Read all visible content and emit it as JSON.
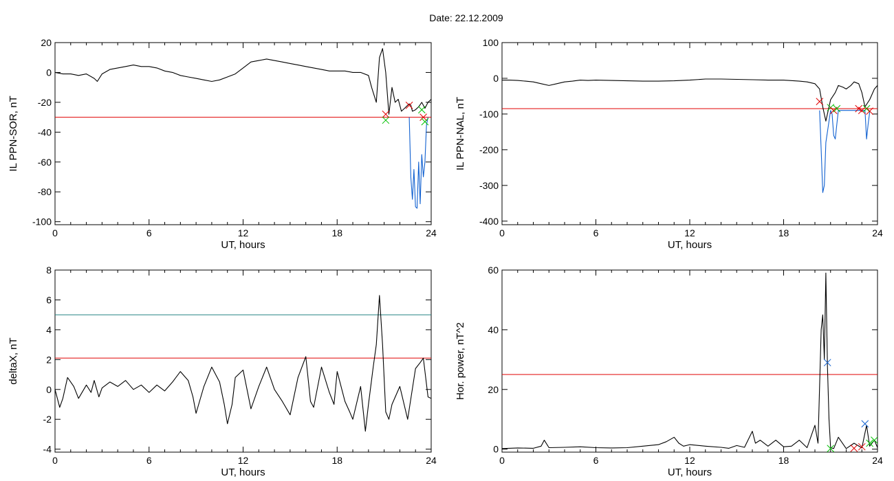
{
  "figure_title": "Date:  22.12.2009",
  "chart_data": [
    {
      "id": "ppn-sor",
      "type": "line",
      "ylabel": "IL PPN-SOR, nT",
      "xlabel": "UT, hours",
      "xlim": [
        0,
        24
      ],
      "ylim": [
        -102,
        20
      ],
      "xticks": [
        0,
        6,
        12,
        18,
        24
      ],
      "yticks": [
        20,
        0,
        -20,
        -40,
        -60,
        -80,
        -100
      ],
      "threshold": {
        "value": -30,
        "color": "#e00000"
      },
      "series": [
        {
          "color": "#000000",
          "x": [
            0,
            0.5,
            1,
            1.5,
            2,
            2.5,
            2.7,
            3,
            3.5,
            4,
            4.5,
            5,
            5.5,
            6,
            6.5,
            7,
            7.5,
            8,
            8.5,
            9,
            9.5,
            10,
            10.5,
            11,
            11.5,
            12,
            12.5,
            13,
            13.5,
            14,
            14.5,
            15,
            15.5,
            16,
            16.5,
            17,
            17.5,
            18,
            18.5,
            19,
            19.5,
            20,
            20.2,
            20.5,
            20.7,
            20.9,
            21.1,
            21.3,
            21.5,
            21.7,
            21.9,
            22.1,
            22.3,
            22.5,
            22.6,
            22.7,
            22.8,
            23,
            23.2,
            23.4,
            23.6,
            23.8,
            24
          ],
          "y": [
            0,
            -1,
            -1,
            -2,
            -1,
            -4,
            -6,
            -1,
            2,
            3,
            4,
            5,
            4,
            4,
            3,
            1,
            0,
            -2,
            -3,
            -4,
            -5,
            -6,
            -5,
            -3,
            -1,
            3,
            7,
            8,
            9,
            8,
            7,
            6,
            5,
            4,
            3,
            2,
            1,
            1,
            1,
            0,
            0,
            -2,
            -10,
            -20,
            10,
            16,
            0,
            -28,
            -10,
            -20,
            -18,
            -26,
            -24,
            -22,
            -21,
            -22,
            -26,
            -25,
            -23,
            -20,
            -24,
            -20,
            -18
          ]
        },
        {
          "color": "#1060d0",
          "x": [
            22.6,
            22.7,
            22.8,
            22.9,
            23.0,
            23.1,
            23.2,
            23.3,
            23.4,
            23.5,
            23.6,
            23.7,
            23.8
          ],
          "y": [
            -30,
            -70,
            -85,
            -65,
            -90,
            -91,
            -60,
            -88,
            -55,
            -70,
            -60,
            -35,
            -30
          ]
        }
      ],
      "markers": [
        {
          "x": 21.1,
          "y": -28,
          "color": "#e00000"
        },
        {
          "x": 21.1,
          "y": -32,
          "color": "#00c000"
        },
        {
          "x": 22.6,
          "y": -22,
          "color": "#e00000"
        },
        {
          "x": 23.4,
          "y": -25,
          "color": "#00c000"
        },
        {
          "x": 23.5,
          "y": -30,
          "color": "#e00000"
        },
        {
          "x": 23.6,
          "y": -33,
          "color": "#00c000"
        }
      ]
    },
    {
      "id": "ppn-nal",
      "type": "line",
      "ylabel": "IL PPN-NAL, nT",
      "xlabel": "UT, hours",
      "xlim": [
        0,
        24
      ],
      "ylim": [
        -410,
        100
      ],
      "xticks": [
        0,
        6,
        12,
        18,
        24
      ],
      "yticks": [
        100,
        0,
        -100,
        -200,
        -300,
        -400
      ],
      "threshold": {
        "value": -85,
        "color": "#e00000"
      },
      "series": [
        {
          "color": "#000000",
          "x": [
            0,
            0.5,
            1,
            1.5,
            2,
            2.5,
            3,
            3.5,
            4,
            4.5,
            5,
            5.5,
            6,
            7,
            8,
            9,
            10,
            11,
            12,
            13,
            14,
            15,
            16,
            17,
            18,
            19,
            19.5,
            20,
            20.3,
            20.5,
            20.7,
            21,
            21.3,
            21.5,
            21.8,
            22,
            22.3,
            22.5,
            22.8,
            23,
            23.2,
            23.5,
            23.8,
            24
          ],
          "y": [
            -5,
            -5,
            -6,
            -8,
            -10,
            -15,
            -20,
            -15,
            -10,
            -8,
            -5,
            -6,
            -5,
            -6,
            -7,
            -8,
            -8,
            -7,
            -5,
            -2,
            -2,
            -3,
            -4,
            -5,
            -5,
            -8,
            -10,
            -15,
            -30,
            -80,
            -120,
            -60,
            -40,
            -20,
            -25,
            -30,
            -20,
            -10,
            -15,
            -40,
            -80,
            -60,
            -30,
            -20
          ]
        },
        {
          "color": "#1060d0",
          "x": [
            20.3,
            20.4,
            20.5,
            20.6,
            20.7,
            20.8,
            20.9,
            21.0,
            21.1,
            21.2,
            21.3,
            21.4,
            21.5,
            23.2,
            23.3,
            23.4,
            23.5
          ],
          "y": [
            -90,
            -200,
            -320,
            -300,
            -180,
            -150,
            -120,
            -90,
            -100,
            -160,
            -170,
            -130,
            -90,
            -90,
            -170,
            -130,
            -95
          ]
        }
      ],
      "markers": [
        {
          "x": 20.3,
          "y": -65,
          "color": "#e00000"
        },
        {
          "x": 21.0,
          "y": -82,
          "color": "#00c000"
        },
        {
          "x": 21.2,
          "y": -90,
          "color": "#e00000"
        },
        {
          "x": 21.4,
          "y": -85,
          "color": "#00c000"
        },
        {
          "x": 22.8,
          "y": -85,
          "color": "#e00000"
        },
        {
          "x": 23.0,
          "y": -90,
          "color": "#e00000"
        },
        {
          "x": 23.3,
          "y": -85,
          "color": "#00c000"
        },
        {
          "x": 23.5,
          "y": -92,
          "color": "#e00000"
        }
      ]
    },
    {
      "id": "delta-x",
      "type": "line",
      "ylabel": "deltaX, nT",
      "xlabel": "UT, hours",
      "xlim": [
        0,
        24
      ],
      "ylim": [
        -4.2,
        8
      ],
      "xticks": [
        0,
        6,
        12,
        18,
        24
      ],
      "yticks": [
        8,
        6,
        4,
        2,
        0,
        -2,
        -4
      ],
      "threshold": {
        "value": 2.1,
        "color": "#e00000"
      },
      "threshold2": {
        "value": 5.0,
        "color": "#208080"
      },
      "series": [
        {
          "color": "#000000",
          "x": [
            0,
            0.3,
            0.5,
            0.8,
            1,
            1.2,
            1.5,
            2,
            2.3,
            2.5,
            2.8,
            3,
            3.5,
            4,
            4.5,
            5,
            5.5,
            6,
            6.5,
            7,
            7.5,
            8,
            8.5,
            8.8,
            9,
            9.5,
            10,
            10.5,
            10.8,
            11,
            11.3,
            11.5,
            12,
            12.5,
            13,
            13.5,
            14,
            14.5,
            15,
            15.5,
            16,
            16.3,
            16.5,
            17,
            17.5,
            17.8,
            18,
            18.5,
            18.8,
            19,
            19.5,
            19.8,
            20,
            20.3,
            20.5,
            20.7,
            20.9,
            21.1,
            21.3,
            21.5,
            22,
            22.5,
            23,
            23.3,
            23.5,
            23.8,
            24
          ],
          "y": [
            0,
            -1.2,
            -0.6,
            0.8,
            0.5,
            0.2,
            -0.6,
            0.3,
            -0.2,
            0.6,
            -0.5,
            0.1,
            0.5,
            0.2,
            0.6,
            0,
            0.3,
            -0.2,
            0.3,
            -0.1,
            0.5,
            1.2,
            0.6,
            -0.5,
            -1.6,
            0.2,
            1.5,
            0.5,
            -1,
            -2.3,
            -1,
            0.8,
            1.3,
            -1.3,
            0.2,
            1.5,
            0,
            -0.8,
            -1.7,
            0.8,
            2.2,
            -0.8,
            -1.2,
            1.5,
            -0.2,
            -1,
            1.2,
            -0.8,
            -1.5,
            -2,
            0.2,
            -2.8,
            -1,
            1.5,
            3,
            6.3,
            3,
            -1.5,
            -2,
            -1,
            0.2,
            -2,
            1.4,
            1.8,
            2.1,
            -0.5,
            -0.6
          ]
        }
      ],
      "markers": []
    },
    {
      "id": "hor-power",
      "type": "line",
      "ylabel": "Hor. power, nT^2",
      "xlabel": "UT, hours",
      "xlim": [
        0,
        24
      ],
      "ylim": [
        -1,
        60
      ],
      "xticks": [
        0,
        6,
        12,
        18,
        24
      ],
      "yticks": [
        60,
        40,
        20,
        0
      ],
      "threshold": {
        "value": 25,
        "color": "#e00000"
      },
      "series": [
        {
          "color": "#000000",
          "x": [
            0,
            1,
            2,
            2.5,
            2.7,
            3,
            4,
            5,
            6,
            7,
            8,
            9,
            10,
            10.5,
            11,
            11.3,
            11.6,
            12,
            13,
            14,
            14.5,
            15,
            15.5,
            16,
            16.2,
            16.5,
            17,
            17.5,
            18,
            18.5,
            19,
            19.5,
            20,
            20.2,
            20.4,
            20.5,
            20.6,
            20.7,
            20.8,
            20.9,
            21.0,
            21.2,
            21.5,
            22,
            22.5,
            23,
            23.3,
            23.5,
            23.8,
            24
          ],
          "y": [
            0.2,
            0.4,
            0.3,
            1,
            3,
            0.5,
            0.6,
            0.8,
            0.5,
            0.4,
            0.5,
            1,
            1.5,
            2.5,
            4,
            2,
            1,
            1.5,
            1,
            0.6,
            0.3,
            1.2,
            0.6,
            6,
            2,
            3,
            1,
            3,
            0.8,
            1,
            3,
            0.5,
            8,
            2,
            40,
            45,
            30,
            59,
            28,
            10,
            0.5,
            0.2,
            4,
            0.2,
            2,
            0.4,
            8,
            1,
            3,
            0.5
          ]
        }
      ],
      "markers": [
        {
          "x": 20.8,
          "y": 29,
          "color": "#1060d0"
        },
        {
          "x": 21.0,
          "y": 0.2,
          "color": "#00c000"
        },
        {
          "x": 22.5,
          "y": 0.3,
          "color": "#e00000"
        },
        {
          "x": 23.0,
          "y": 0.8,
          "color": "#e00000"
        },
        {
          "x": 23.2,
          "y": 8.5,
          "color": "#1060d0"
        },
        {
          "x": 23.5,
          "y": 2,
          "color": "#00c000"
        },
        {
          "x": 23.8,
          "y": 3,
          "color": "#00c000"
        }
      ]
    }
  ]
}
